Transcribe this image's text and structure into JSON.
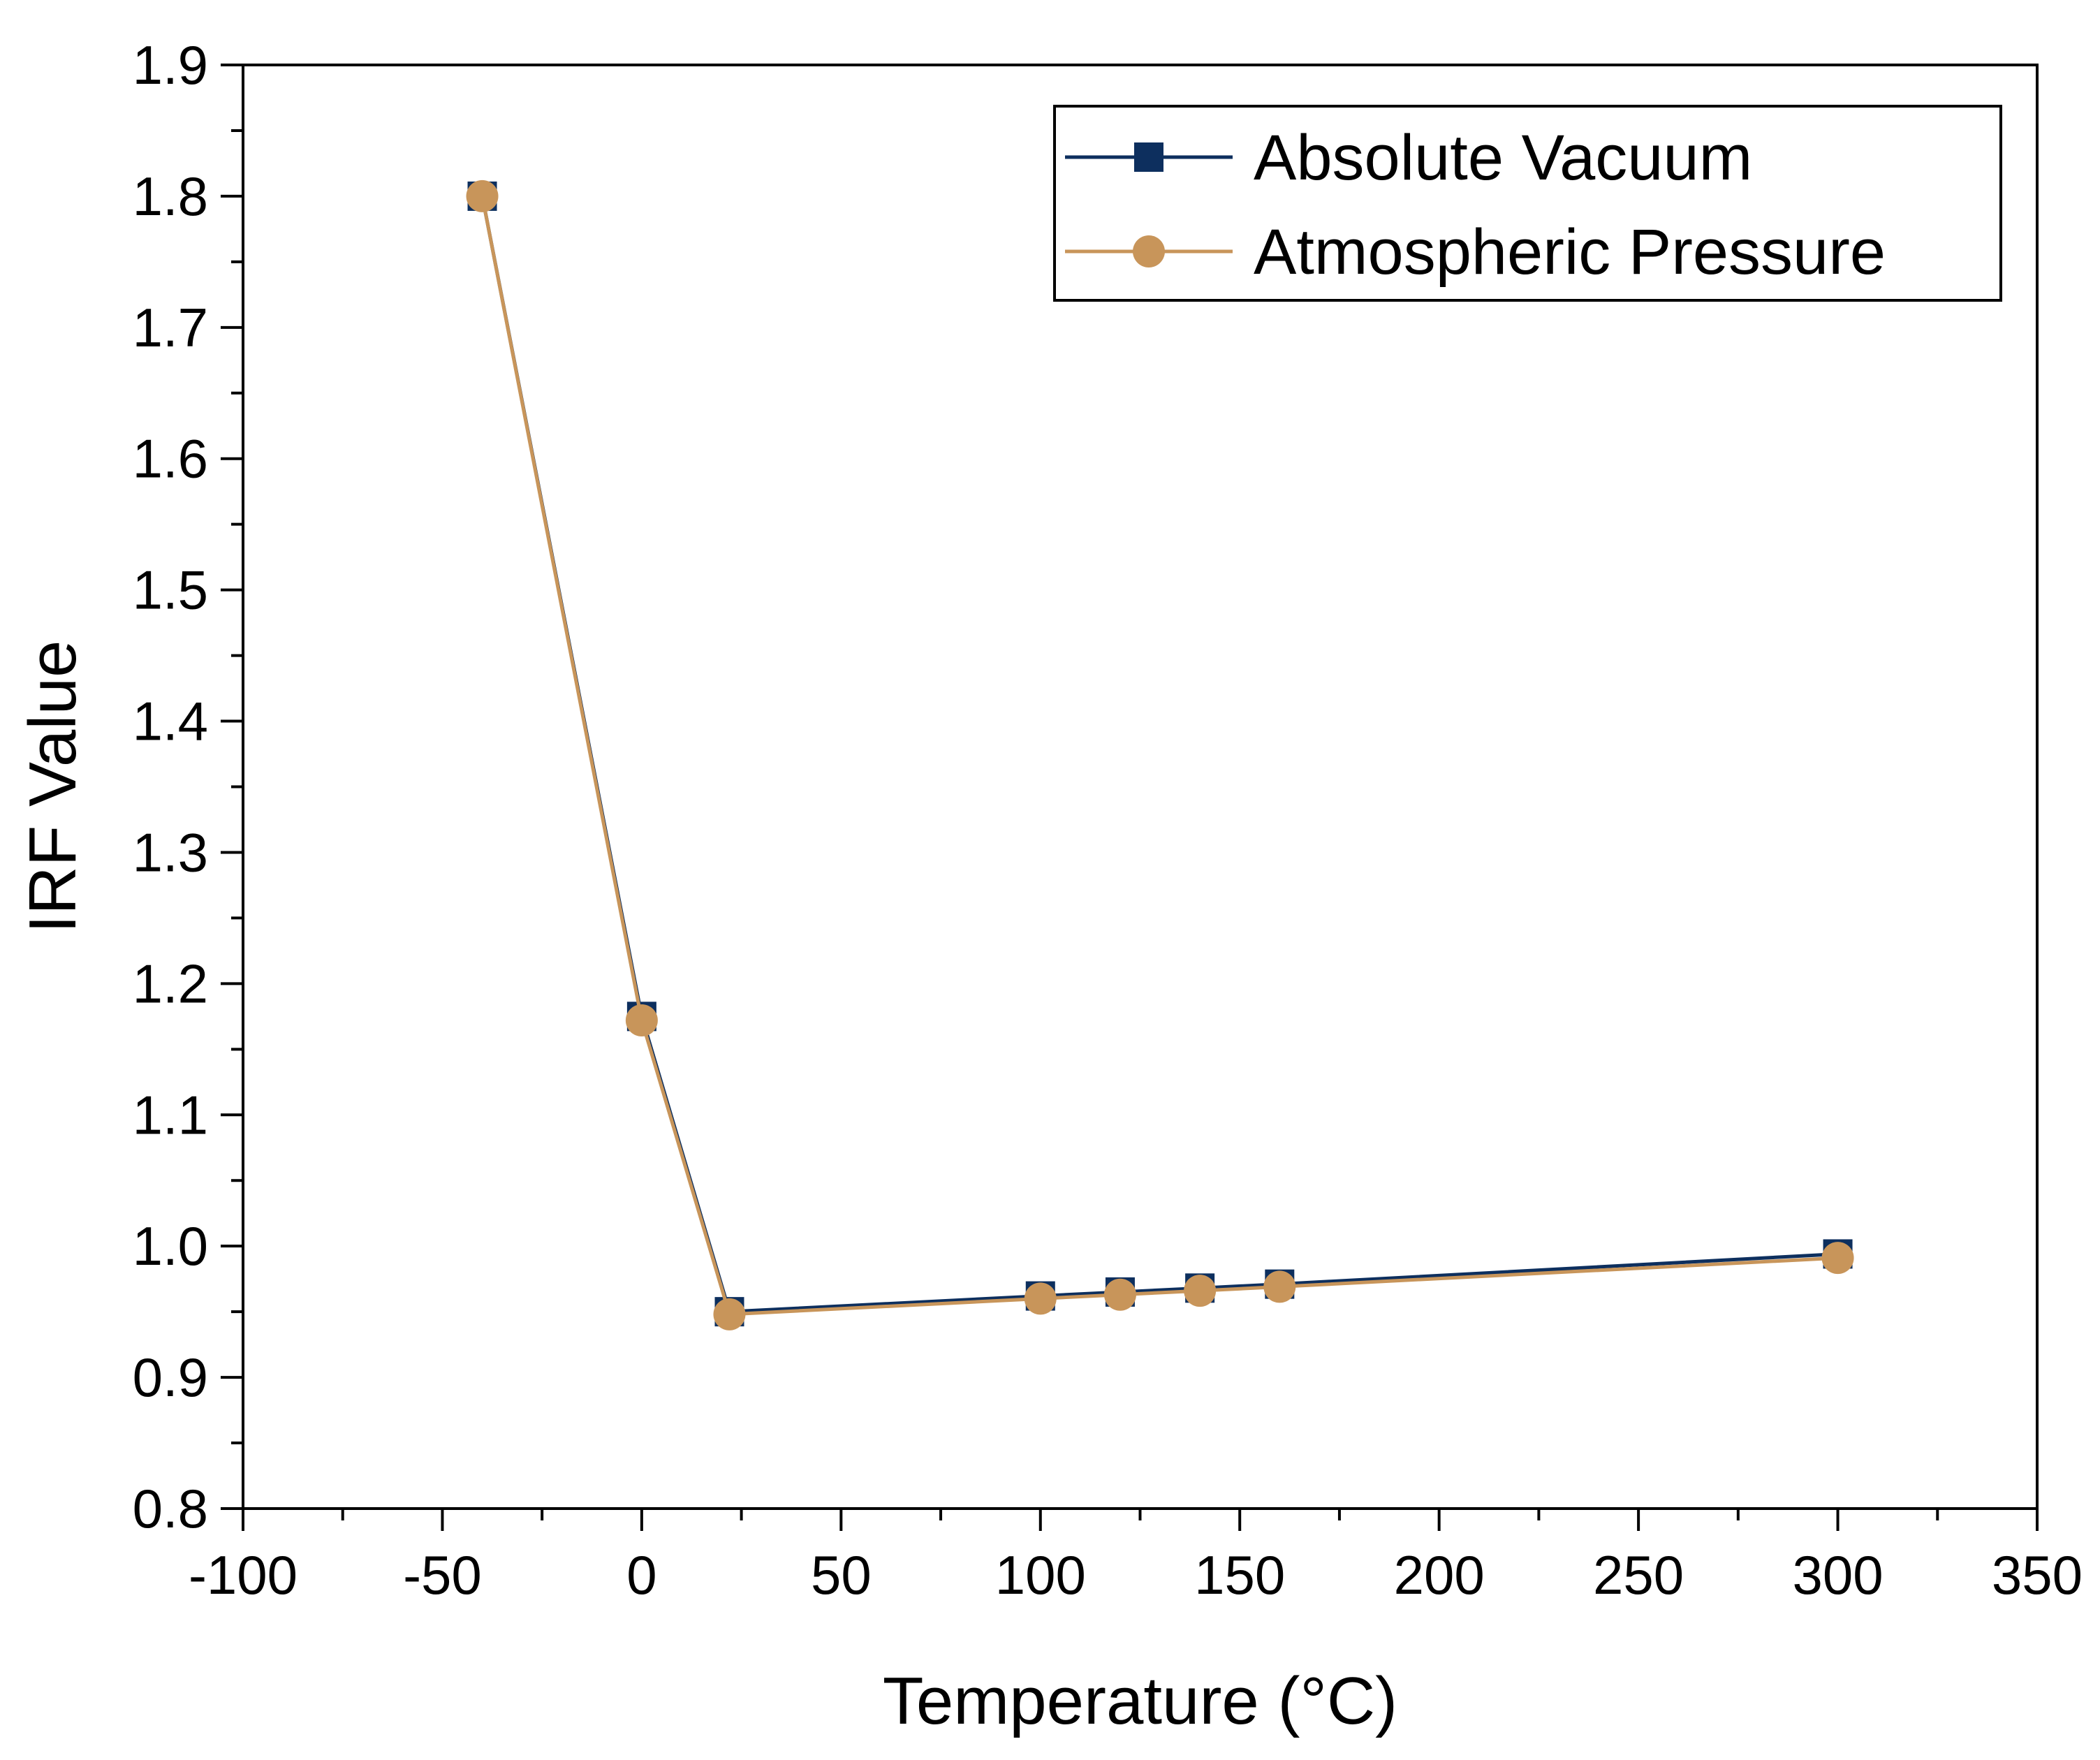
{
  "chart_data": {
    "type": "line",
    "title": "",
    "xlabel": "Temperature (°C)",
    "ylabel": "IRF Value",
    "xlim": [
      -100,
      350
    ],
    "ylim": [
      0.8,
      1.9
    ],
    "x_ticks": [
      -100,
      -50,
      0,
      50,
      100,
      150,
      200,
      250,
      300,
      350
    ],
    "x_tick_labels": [
      "-100",
      "-50",
      "0",
      "50",
      "100",
      "150",
      "200",
      "250",
      "300",
      "350"
    ],
    "y_ticks": [
      0.8,
      0.9,
      1.0,
      1.1,
      1.2,
      1.3,
      1.4,
      1.5,
      1.6,
      1.7,
      1.8,
      1.9
    ],
    "y_tick_labels": [
      "0.8",
      "0.9",
      "1.0",
      "1.1",
      "1.2",
      "1.3",
      "1.4",
      "1.5",
      "1.6",
      "1.7",
      "1.8",
      "1.9"
    ],
    "grid": false,
    "legend_position": "top-right",
    "series": [
      {
        "name": "Absolute Vacuum",
        "marker": "square",
        "color": "#0d2f5e",
        "x": [
          -40,
          0,
          22,
          100,
          120,
          140,
          160,
          300
        ],
        "y": [
          1.8,
          1.175,
          0.95,
          0.962,
          0.965,
          0.968,
          0.971,
          0.994
        ]
      },
      {
        "name": "Atmospheric Pressure",
        "marker": "circle",
        "color": "#c8955a",
        "x": [
          -40,
          0,
          22,
          100,
          120,
          140,
          160,
          300
        ],
        "y": [
          1.8,
          1.172,
          0.948,
          0.96,
          0.963,
          0.966,
          0.969,
          0.991
        ]
      }
    ]
  }
}
